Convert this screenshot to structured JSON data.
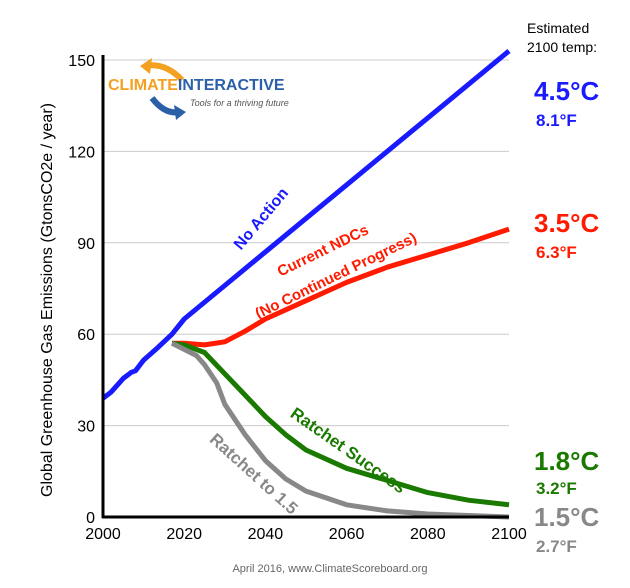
{
  "chart_data": {
    "type": "line",
    "title": "",
    "xlabel": "",
    "ylabel": "Global Greenhouse Gas Emissions  (GtonsCO2e / year)",
    "xlim": [
      2000,
      2100
    ],
    "ylim": [
      0,
      150
    ],
    "xticks": [
      2000,
      2020,
      2040,
      2060,
      2080,
      2100
    ],
    "yticks": [
      0,
      30,
      60,
      90,
      120,
      150
    ],
    "grid": true,
    "series": [
      {
        "name": "No Action",
        "color": "#1a1aff",
        "x": [
          2000,
          2002,
          2005,
          2007,
          2008,
          2010,
          2013,
          2015,
          2017,
          2020,
          2030,
          2040,
          2050,
          2060,
          2070,
          2080,
          2090,
          2100
        ],
        "y": [
          39,
          41,
          45.5,
          47.5,
          48,
          51.5,
          55,
          57.5,
          60,
          65,
          76,
          87,
          98,
          109,
          120,
          131,
          142,
          153
        ]
      },
      {
        "name": "Current NDCs (No Continued Progress)",
        "color": "#ff1a00",
        "x": [
          2017,
          2020,
          2025,
          2030,
          2035,
          2040,
          2050,
          2060,
          2070,
          2080,
          2090,
          2100
        ],
        "y": [
          57,
          57,
          56.5,
          57.5,
          61,
          65,
          71,
          77,
          82,
          86,
          90,
          94.5
        ]
      },
      {
        "name": "Ratchet Success",
        "color": "#1a7a00",
        "x": [
          2017,
          2020,
          2025,
          2030,
          2035,
          2040,
          2045,
          2050,
          2060,
          2070,
          2080,
          2090,
          2100
        ],
        "y": [
          57,
          56.5,
          54,
          47,
          40,
          33,
          27,
          22,
          16,
          12,
          8,
          5.5,
          4
        ]
      },
      {
        "name": "Ratchet to 1.5",
        "color": "#888888",
        "x": [
          2017,
          2020,
          2023,
          2025,
          2028,
          2030,
          2035,
          2040,
          2045,
          2050,
          2060,
          2070,
          2080,
          2090,
          2100
        ],
        "y": [
          57,
          55,
          53,
          50,
          44,
          37,
          27,
          18.5,
          12.5,
          8.5,
          4,
          2,
          1,
          0.5,
          0
        ]
      }
    ],
    "annotations": {
      "header": [
        "Estimated",
        "2100 temp:"
      ],
      "temps": [
        {
          "c": "4.5°C",
          "f": "8.1°F",
          "color": "#1a1aff"
        },
        {
          "c": "3.5°C",
          "f": "6.3°F",
          "color": "#ff1a00"
        },
        {
          "c": "1.8°C",
          "f": "3.2°F",
          "color": "#1a7a00"
        },
        {
          "c": "1.5°C",
          "f": "2.7°F",
          "color": "#888888"
        }
      ],
      "ndc_label_line2": "(No Continued Progress)",
      "ndc_label_line1": "Current NDCs",
      "footer": "April 2016, www.ClimateScoreboard.org"
    }
  },
  "logo": {
    "name_part1": "CLIMATE",
    "name_part2": "INTERACTIVE",
    "tagline": "Tools for a thriving future"
  }
}
